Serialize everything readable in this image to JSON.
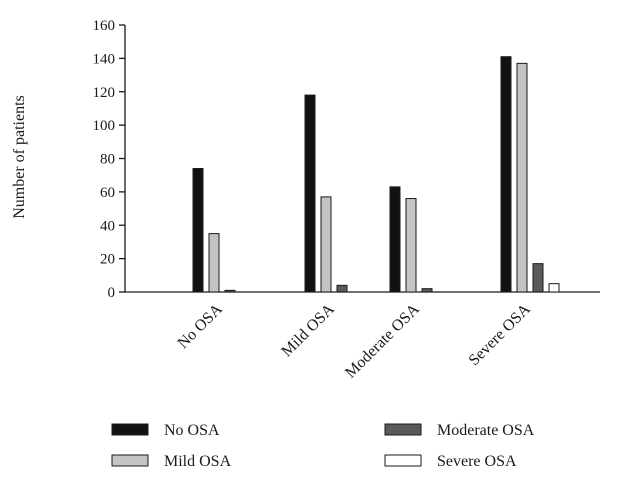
{
  "chart_data": {
    "type": "bar",
    "ylabel": "Number of patients",
    "xlabel": "",
    "ylim": [
      0,
      160
    ],
    "yticks": [
      0,
      20,
      40,
      60,
      80,
      100,
      120,
      140,
      160
    ],
    "categories": [
      "No OSA",
      "Mild OSA",
      "Moderate OSA",
      "Severe OSA"
    ],
    "series": [
      {
        "name": "No OSA",
        "color": "#111111",
        "values": [
          74,
          118,
          63,
          141
        ]
      },
      {
        "name": "Mild OSA",
        "color": "#c4c4c4",
        "values": [
          35,
          57,
          56,
          137
        ]
      },
      {
        "name": "Moderate OSA",
        "color": "#5a5a5a",
        "values": [
          1,
          4,
          2,
          17
        ]
      },
      {
        "name": "Severe OSA",
        "color": "#ffffff",
        "values": [
          0,
          0,
          0,
          5
        ]
      }
    ],
    "legend_position": "bottom",
    "grid": false
  }
}
